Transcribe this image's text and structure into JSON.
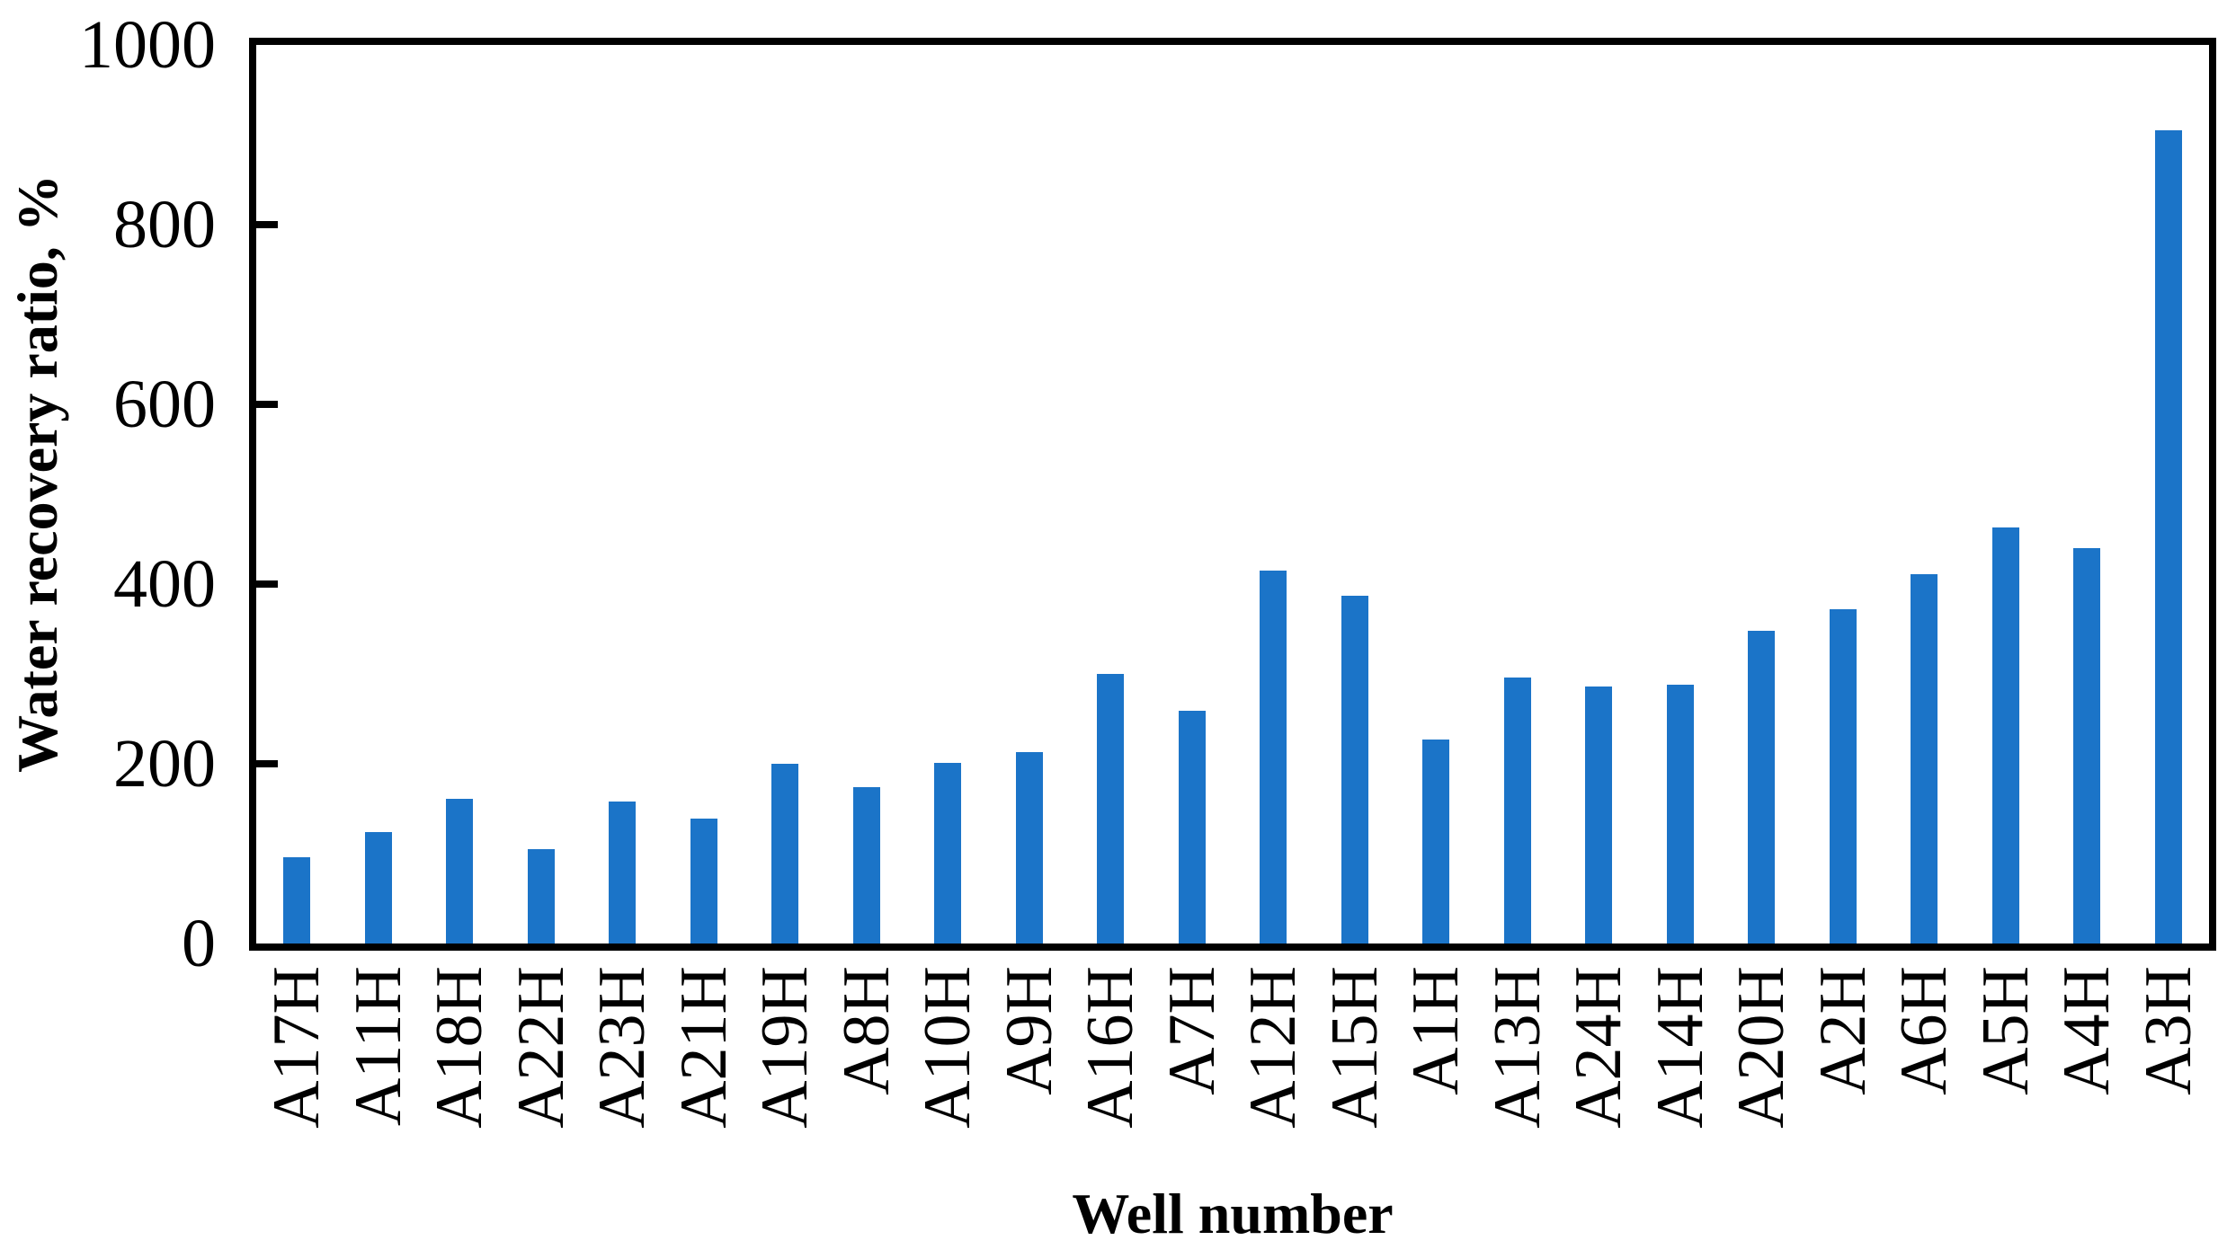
{
  "chart_data": {
    "type": "bar",
    "title": "",
    "xlabel": "Well number",
    "ylabel": "Water recovery ratio, %",
    "categories": [
      "A17H",
      "A11H",
      "A18H",
      "A22H",
      "A23H",
      "A21H",
      "A19H",
      "A8H",
      "A10H",
      "A9H",
      "A16H",
      "A7H",
      "A12H",
      "A15H",
      "A1H",
      "A13H",
      "A24H",
      "A14H",
      "A20H",
      "A2H",
      "A6H",
      "A5H",
      "A4H",
      "A3H"
    ],
    "values": [
      96,
      124,
      161,
      105,
      158,
      139,
      200,
      174,
      201,
      213,
      300,
      259,
      415,
      387,
      227,
      296,
      286,
      288,
      348,
      372,
      411,
      463,
      440,
      905
    ],
    "ylim": [
      0,
      1000
    ],
    "y_tick_step": 200,
    "y_tick_labels": [
      "0",
      "200",
      "400",
      "600",
      "800",
      "1000"
    ],
    "grid": false,
    "legend_position": "none",
    "bar_color": "#1B74C8",
    "axis_color": "#000000",
    "text_color": "#000000"
  }
}
